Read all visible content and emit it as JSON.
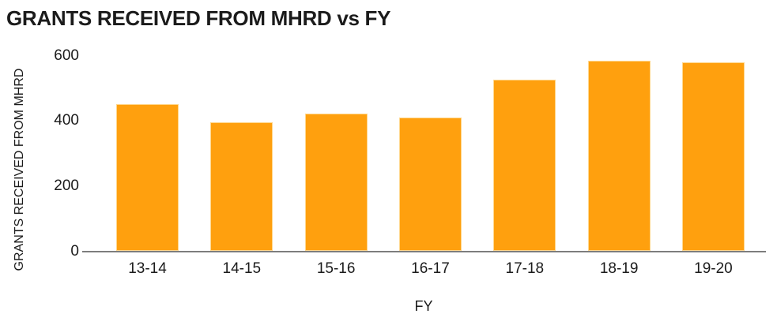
{
  "chart_data": {
    "type": "bar",
    "title": "GRANTS RECEIVED FROM MHRD vs FY",
    "xlabel": "FY",
    "ylabel": "GRANTS RECEIVED FROM MHRD",
    "categories": [
      "13-14",
      "14-15",
      "15-16",
      "16-17",
      "17-18",
      "18-19",
      "19-20"
    ],
    "values": [
      450,
      395,
      422,
      410,
      524,
      583,
      578
    ],
    "ylim": [
      0,
      600
    ],
    "yticks": [
      0,
      200,
      400,
      600
    ],
    "grid": false,
    "legend_position": "none",
    "bar_color": "#FFA00E",
    "bar_edge_color": "#FFD78C",
    "axis_line_color": "#7D7D7D",
    "text_color": "#1B1B1B",
    "background_color": "#FFFFFF"
  }
}
